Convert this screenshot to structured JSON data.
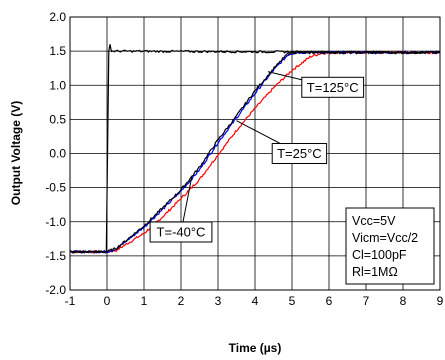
{
  "chart_data": {
    "type": "line",
    "title": "",
    "xlabel": "Time (µs)",
    "ylabel": "Output Voltage (V)",
    "xlim": [
      -1,
      9
    ],
    "ylim": [
      -2.0,
      2.0
    ],
    "x_ticks": [
      "-1",
      "0",
      "1",
      "2",
      "3",
      "4",
      "5",
      "6",
      "7",
      "8",
      "9"
    ],
    "y_ticks": [
      "2.0",
      "1.5",
      "1.0",
      "0.5",
      "0.0",
      "-0.5",
      "-1.0",
      "-1.5",
      "-2.0"
    ],
    "grid": true,
    "series": [
      {
        "color": "#000000",
        "x": [
          -1,
          -0.05,
          0,
          0.02,
          0.05,
          0.08,
          0.12,
          9
        ],
        "y": [
          -1.44,
          -1.44,
          -1.44,
          0.2,
          1.5,
          1.6,
          1.5,
          1.48
        ]
      },
      {
        "color": "#000000",
        "x": [
          -1,
          0,
          0.25,
          1,
          1.5,
          2,
          2.5,
          3,
          3.5,
          4,
          4.5,
          4.9,
          5.1,
          9
        ],
        "y": [
          -1.44,
          -1.44,
          -1.39,
          -1.06,
          -0.8,
          -0.53,
          -0.2,
          0.2,
          0.55,
          0.92,
          1.24,
          1.47,
          1.48,
          1.48
        ]
      },
      {
        "color": "#0000ff",
        "x": [
          -1,
          0,
          0.25,
          1,
          1.5,
          2,
          2.5,
          3,
          3.5,
          4,
          4.5,
          4.9,
          5.1,
          9
        ],
        "y": [
          -1.44,
          -1.44,
          -1.4,
          -1.08,
          -0.82,
          -0.55,
          -0.24,
          0.16,
          0.52,
          0.88,
          1.22,
          1.45,
          1.48,
          1.48
        ]
      },
      {
        "color": "#ff0000",
        "x": [
          -1,
          0,
          0.25,
          1,
          1.5,
          2,
          2.5,
          3,
          3.5,
          4,
          4.5,
          5,
          5.5,
          5.8,
          6,
          9
        ],
        "y": [
          -1.44,
          -1.44,
          -1.42,
          -1.17,
          -0.93,
          -0.66,
          -0.38,
          -0.02,
          0.34,
          0.66,
          0.96,
          1.22,
          1.42,
          1.47,
          1.48,
          1.48
        ]
      }
    ],
    "annotations": [
      {
        "label": "T=125°C",
        "x": 6.1,
        "y": 0.97,
        "target_x": 4.35,
        "target_y": 1.2
      },
      {
        "label": "T=25°C",
        "x": 5.2,
        "y": 0.0,
        "target_x": 3.5,
        "target_y": 0.48
      },
      {
        "label": "T=-40°C",
        "x": 2.0,
        "y": -1.15,
        "target_x": 2.3,
        "target_y": -0.32
      }
    ],
    "conditions": [
      "Vcc=5V",
      "Vicm=Vcc/2",
      "Cl=100pF",
      "Rl=1MΩ"
    ]
  }
}
